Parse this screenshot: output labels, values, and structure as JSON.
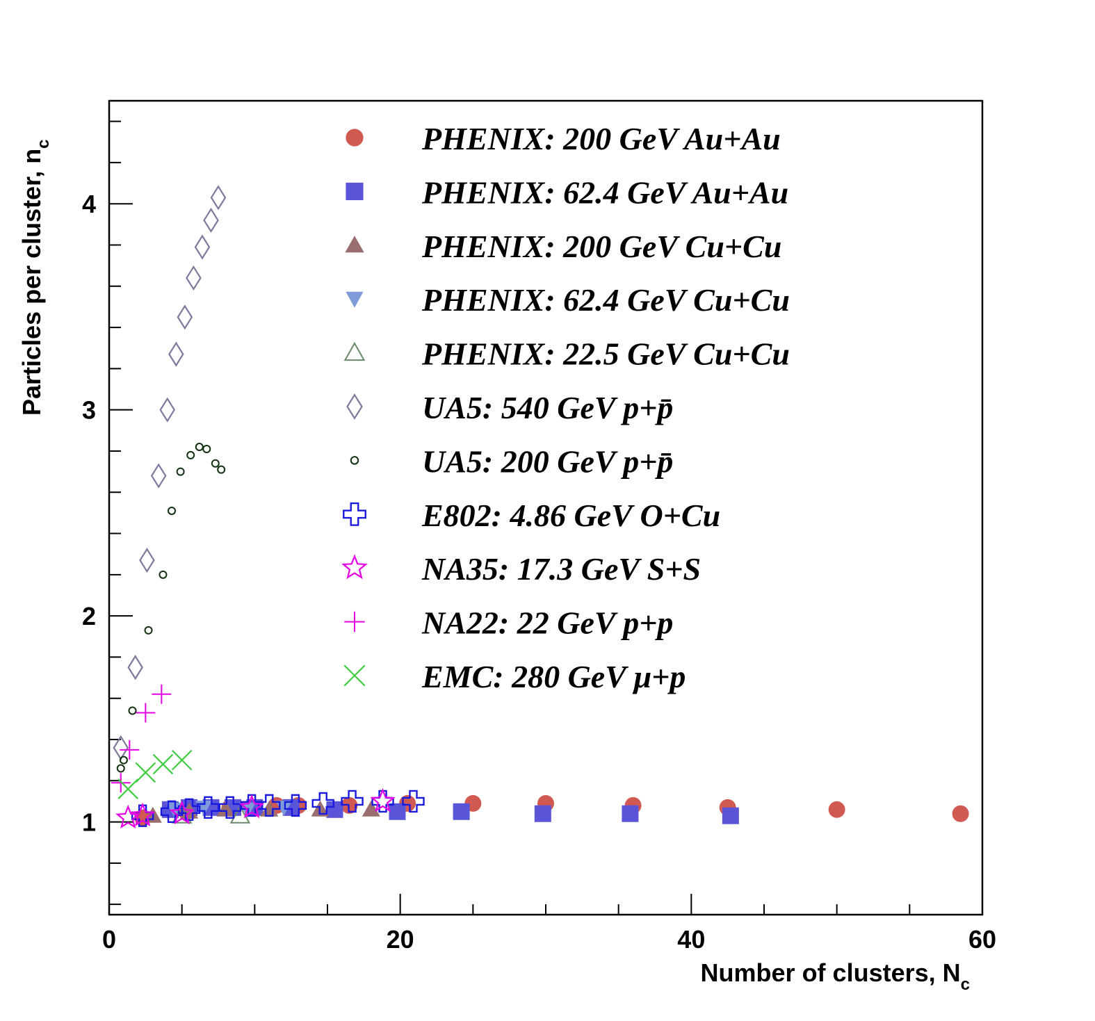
{
  "chart_data": {
    "type": "scatter",
    "xlabel": "Number of clusters, N",
    "xlabel_sub": "c",
    "ylabel": "Particles per cluster, n",
    "ylabel_sub": "c",
    "xlim": [
      0,
      60
    ],
    "ylim": [
      0.55,
      4.5
    ],
    "xticks": [
      "0",
      "20",
      "40",
      "60"
    ],
    "yticks": [
      "1",
      "2",
      "3",
      "4"
    ],
    "grid": false,
    "legend_position": "top-right",
    "series": [
      {
        "name": "PHENIX: 200 GeV Au+Au",
        "marker": "filled-circle",
        "color": "#d05a52",
        "points": [
          [
            2.3,
            1.02
          ],
          [
            5.3,
            1.05
          ],
          [
            8.3,
            1.07
          ],
          [
            11.5,
            1.08
          ],
          [
            13.0,
            1.08
          ],
          [
            16.5,
            1.08
          ],
          [
            20.5,
            1.09
          ],
          [
            25.0,
            1.09
          ],
          [
            30.0,
            1.09
          ],
          [
            36.0,
            1.08
          ],
          [
            42.5,
            1.07
          ],
          [
            50.0,
            1.06
          ],
          [
            58.5,
            1.04
          ]
        ]
      },
      {
        "name": "PHENIX: 62.4 GeV Au+Au",
        "marker": "filled-square",
        "color": "#5a55d8",
        "points": [
          [
            4.2,
            1.06
          ],
          [
            5.5,
            1.07
          ],
          [
            7.0,
            1.07
          ],
          [
            8.5,
            1.07
          ],
          [
            10.0,
            1.07
          ],
          [
            12.5,
            1.07
          ],
          [
            15.5,
            1.06
          ],
          [
            19.8,
            1.05
          ],
          [
            24.2,
            1.05
          ],
          [
            29.8,
            1.04
          ],
          [
            35.8,
            1.04
          ],
          [
            42.7,
            1.03
          ]
        ]
      },
      {
        "name": "PHENIX: 200 GeV Cu+Cu",
        "marker": "filled-triangle-up",
        "color": "#9a6e6e",
        "points": [
          [
            3.0,
            1.03
          ],
          [
            5.5,
            1.05
          ],
          [
            8.0,
            1.06
          ],
          [
            11.0,
            1.06
          ],
          [
            14.5,
            1.06
          ],
          [
            18.0,
            1.06
          ]
        ]
      },
      {
        "name": "PHENIX: 62.4 GeV Cu+Cu",
        "marker": "filled-triangle-down",
        "color": "#7f9bd8",
        "points": [
          [
            4.5,
            1.06
          ],
          [
            6.5,
            1.07
          ],
          [
            9.5,
            1.06
          ],
          [
            12.0,
            1.07
          ]
        ]
      },
      {
        "name": "PHENIX: 22.5 GeV Cu+Cu",
        "marker": "open-triangle-up",
        "color": "#6a8a6a",
        "points": [
          [
            5.0,
            1.03
          ],
          [
            9.0,
            1.03
          ]
        ]
      },
      {
        "name": "UA5: 540 GeV p+p̄",
        "marker": "open-diamond",
        "color": "#7a7a9c",
        "points": [
          [
            0.8,
            1.36
          ],
          [
            1.8,
            1.75
          ],
          [
            2.6,
            2.27
          ],
          [
            3.4,
            2.68
          ],
          [
            4.0,
            3.0
          ],
          [
            4.6,
            3.27
          ],
          [
            5.2,
            3.45
          ],
          [
            5.8,
            3.64
          ],
          [
            6.4,
            3.79
          ],
          [
            7.0,
            3.92
          ],
          [
            7.5,
            4.03
          ]
        ]
      },
      {
        "name": "UA5: 200 GeV p+p̄",
        "marker": "small-open-circle",
        "color": "#103010",
        "points": [
          [
            0.8,
            1.26
          ],
          [
            1.0,
            1.3
          ],
          [
            1.6,
            1.54
          ],
          [
            2.7,
            1.93
          ],
          [
            3.7,
            2.2
          ],
          [
            4.3,
            2.51
          ],
          [
            4.9,
            2.7
          ],
          [
            5.6,
            2.78
          ],
          [
            6.2,
            2.82
          ],
          [
            6.7,
            2.81
          ],
          [
            7.3,
            2.74
          ],
          [
            7.7,
            2.71
          ]
        ]
      },
      {
        "name": "E802: 4.86 GeV O+Cu",
        "marker": "open-cross",
        "color": "#1a1adf",
        "points": [
          [
            2.3,
            1.03
          ],
          [
            4.3,
            1.05
          ],
          [
            5.5,
            1.06
          ],
          [
            6.8,
            1.07
          ],
          [
            8.3,
            1.07
          ],
          [
            9.8,
            1.08
          ],
          [
            11.0,
            1.08
          ],
          [
            12.8,
            1.08
          ],
          [
            14.7,
            1.09
          ],
          [
            16.7,
            1.1
          ],
          [
            18.8,
            1.1
          ],
          [
            20.9,
            1.1
          ]
        ]
      },
      {
        "name": "NA35: 17.3 GeV S+S",
        "marker": "open-star",
        "color": "#e600e6",
        "points": [
          [
            1.3,
            1.02
          ],
          [
            2.3,
            1.03
          ],
          [
            5.0,
            1.04
          ],
          [
            9.8,
            1.07
          ],
          [
            18.8,
            1.1
          ]
        ]
      },
      {
        "name": "NA22: 22 GeV p+p",
        "marker": "plus",
        "color": "#e600e6",
        "points": [
          [
            0.8,
            1.19
          ],
          [
            1.4,
            1.35
          ],
          [
            2.5,
            1.53
          ],
          [
            3.6,
            1.62
          ]
        ]
      },
      {
        "name": "EMC: 280 GeV μ+p",
        "marker": "x-cross",
        "color": "#40cc40",
        "points": [
          [
            1.3,
            1.16
          ],
          [
            2.5,
            1.24
          ],
          [
            3.7,
            1.28
          ],
          [
            5.0,
            1.3
          ]
        ]
      }
    ]
  }
}
